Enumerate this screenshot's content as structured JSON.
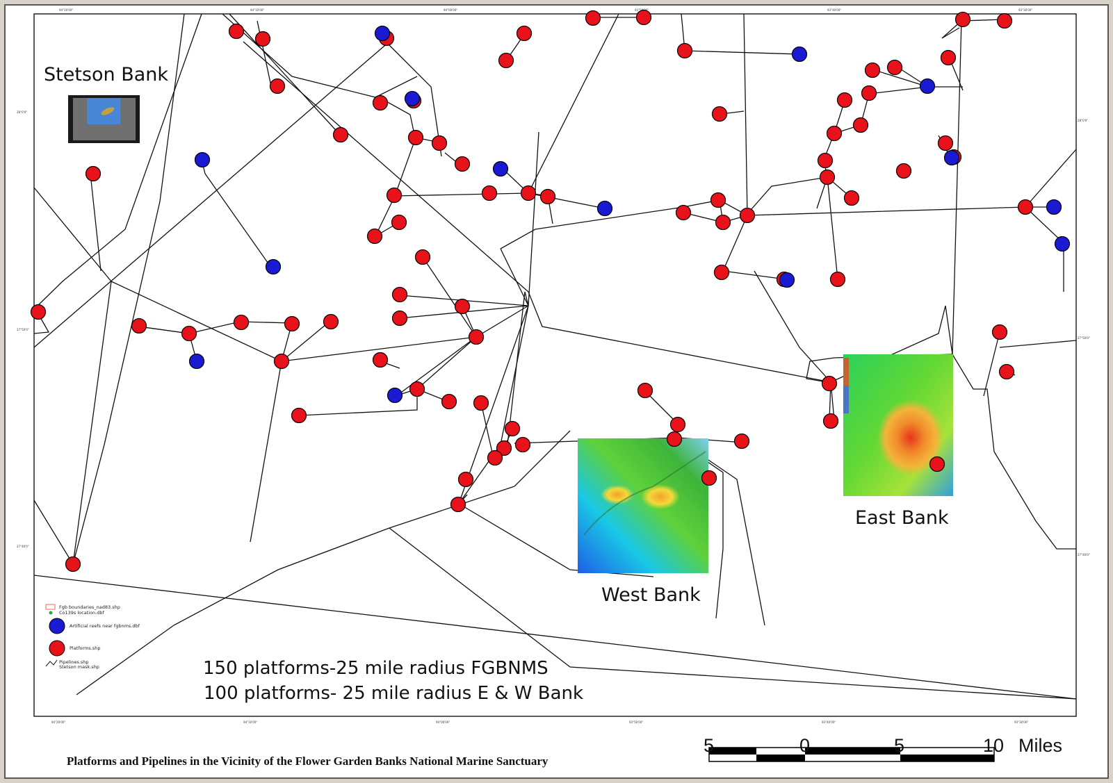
{
  "colors": {
    "platform": "#e8121a",
    "artificial_reef": "#1a1ad2",
    "pipeline": "#111111",
    "frame": "#d7d3ca"
  },
  "labels": {
    "stetson_bank": "Stetson Bank",
    "east_bank": "East Bank",
    "west_bank": "West Bank",
    "stat_line_1": "150 platforms-25 mile radius FGBNMS",
    "stat_line_2": "100 platforms- 25 mile radius E & W Bank"
  },
  "legend": {
    "fgb_boundaries": "Fgb boundaries_nad83.shp",
    "co139s": "Co139s location.dbf",
    "artificial_reefs": "Artificial reefs near fgbnms.dbf",
    "platforms": "Platforms.shp",
    "pipelines": "Pipelines.shp",
    "stetson_mask": "Stetson mask.shp"
  },
  "title": "Platforms and Pipelines in the Vicinity of the Flower Garden Banks National Marine Sanctuary",
  "scale_bar": {
    "labels": [
      "5",
      "0",
      "5",
      "10"
    ],
    "unit": "Miles"
  },
  "graticule": {
    "top": [
      "94°20'00\"",
      "94°10'00\"",
      "94°00'00\"",
      "93°50'00\"",
      "93°40'00\"",
      "93°30'00\""
    ],
    "bottom": [
      "94°20'00\"",
      "94°10'00\"",
      "94°00'00\"",
      "93°50'00\"",
      "93°40'00\"",
      "93°30'00\""
    ],
    "left": [
      "28°0'0\"",
      "27°50'0\"",
      "27°40'0\""
    ],
    "right": [
      "28°0'0\"",
      "27°50'0\"",
      "27°40'0\""
    ]
  }
}
